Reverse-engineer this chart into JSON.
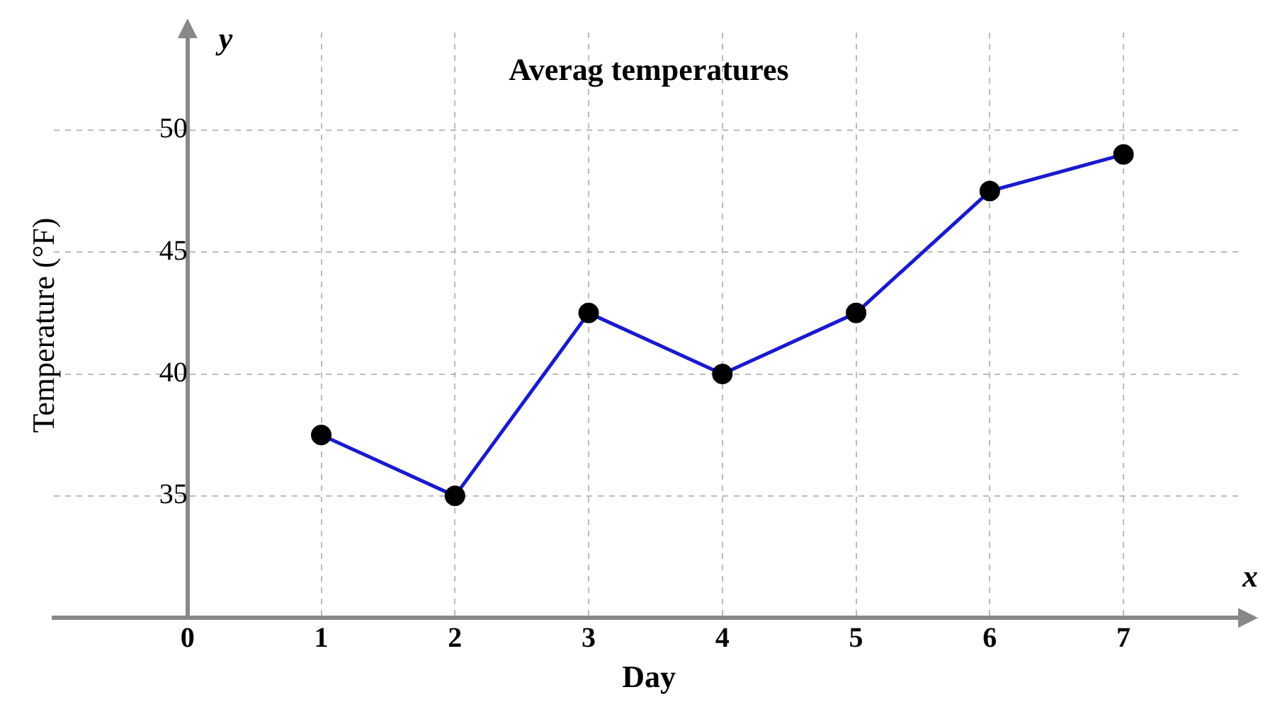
{
  "chart_data": {
    "type": "line",
    "title": "Averag temperatures",
    "xlabel": "Day",
    "ylabel": "Temperature (°F)",
    "annotations": [
      "x",
      "y"
    ],
    "x": [
      1,
      2,
      3,
      4,
      5,
      6,
      7
    ],
    "series": [
      {
        "color": "#1a1acc",
        "values": [
          37.5,
          35,
          42.5,
          40,
          42.5,
          47.5,
          49
        ]
      }
    ],
    "xlim": [
      -1,
      7.9
    ],
    "xticks": [
      {
        "value": 0,
        "label": "0"
      },
      1,
      2,
      3,
      4,
      5,
      6,
      7
    ],
    "ylim": [
      30,
      54
    ],
    "yticks": [
      35,
      40,
      45,
      50
    ],
    "grid": true,
    "legend": false,
    "marker": "circle",
    "line_style": "solid"
  }
}
